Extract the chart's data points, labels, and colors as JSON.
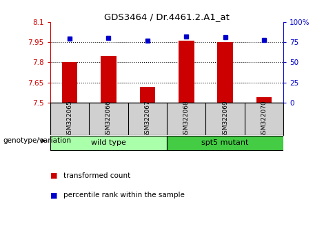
{
  "title": "GDS3464 / Dr.4461.2.A1_at",
  "samples": [
    "GSM322065",
    "GSM322066",
    "GSM322067",
    "GSM322068",
    "GSM322069",
    "GSM322070"
  ],
  "transformed_count": [
    7.8,
    7.85,
    7.62,
    7.96,
    7.95,
    7.54
  ],
  "percentile_rank": [
    79,
    80,
    77,
    82,
    81,
    78
  ],
  "ylim_left": [
    7.5,
    8.1
  ],
  "ylim_right": [
    0,
    100
  ],
  "yticks_left": [
    7.5,
    7.65,
    7.8,
    7.95,
    8.1
  ],
  "yticks_right": [
    0,
    25,
    50,
    75,
    100
  ],
  "ytick_labels_left": [
    "7.5",
    "7.65",
    "7.8",
    "7.95",
    "8.1"
  ],
  "ytick_labels_right": [
    "0",
    "25",
    "50",
    "75",
    "100%"
  ],
  "bar_color": "#cc0000",
  "dot_color": "#0000cc",
  "groups": [
    {
      "label": "wild type",
      "indices": [
        0,
        1,
        2
      ],
      "color": "#aaffaa"
    },
    {
      "label": "spt5 mutant",
      "indices": [
        3,
        4,
        5
      ],
      "color": "#44cc44"
    }
  ],
  "group_label": "genotype/variation",
  "legend_bar_label": "transformed count",
  "legend_dot_label": "percentile rank within the sample",
  "axis_bg": "#d0d0d0",
  "left_tick_color": "#cc0000",
  "right_tick_color": "#0000cc",
  "dotted_lines": [
    7.65,
    7.8,
    7.95
  ]
}
